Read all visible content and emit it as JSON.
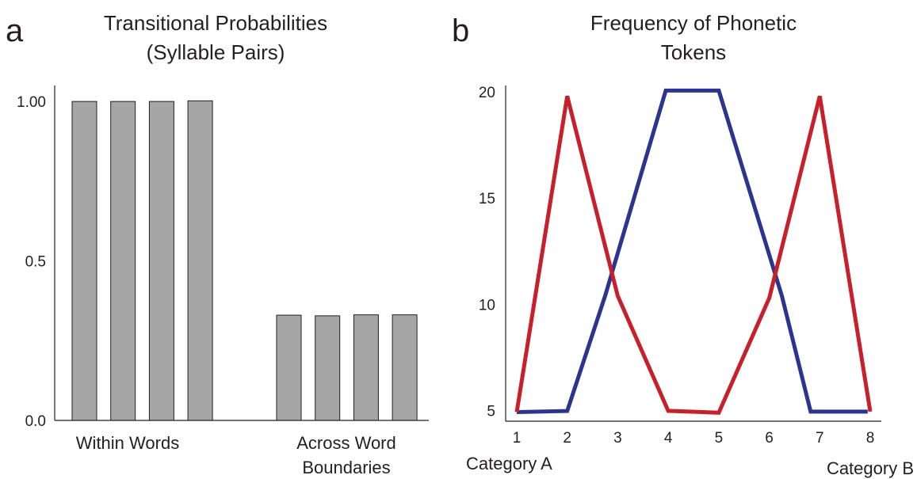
{
  "chart_data": [
    {
      "panel": "a",
      "type": "bar",
      "title": "Transitional Probabilities (Syllable Pairs)",
      "title_lines": [
        "Transitional Probabilities",
        "(Syllable Pairs)"
      ],
      "ylim": [
        0,
        1.05
      ],
      "yticks": [
        {
          "value": 0.0,
          "label": "0.0"
        },
        {
          "value": 0.5,
          "label": "0.5"
        },
        {
          "value": 1.0,
          "label": "1.00"
        }
      ],
      "groups": [
        {
          "label_lines": [
            "Within Words"
          ],
          "values": [
            1.0,
            1.0,
            1.0,
            1.002
          ]
        },
        {
          "label_lines": [
            "Across Word",
            "Boundaries"
          ],
          "values": [
            0.33,
            0.328,
            0.331,
            0.331
          ]
        }
      ],
      "bar_color": "#a6a6a6",
      "grid": false
    },
    {
      "panel": "b",
      "type": "line",
      "title": "Frequency of Phonetic Tokens",
      "title_lines": [
        "Frequency of Phonetic",
        "Tokens"
      ],
      "x": [
        1,
        2,
        3,
        4,
        5,
        6,
        7,
        8
      ],
      "xlim": [
        1,
        8
      ],
      "ylim": [
        4.5,
        20.3
      ],
      "yticks": [
        5,
        10,
        15,
        20
      ],
      "series": [
        {
          "color": "#c8202a",
          "values": [
            4.93,
            19.8,
            10.4,
            4.99,
            4.9,
            10.3,
            19.8,
            4.95
          ]
        },
        {
          "color": "#2b3590",
          "values": [
            4.93,
            4.98,
            10.4,
            20.06,
            20.06,
            10.4,
            4.95,
            4.95
          ],
          "x": [
            1,
            2,
            2.75,
            3.95,
            5.0,
            6.25,
            6.82,
            7.95
          ]
        }
      ],
      "end_labels": {
        "left": "Category A",
        "right": "Category B"
      },
      "grid": false
    }
  ]
}
